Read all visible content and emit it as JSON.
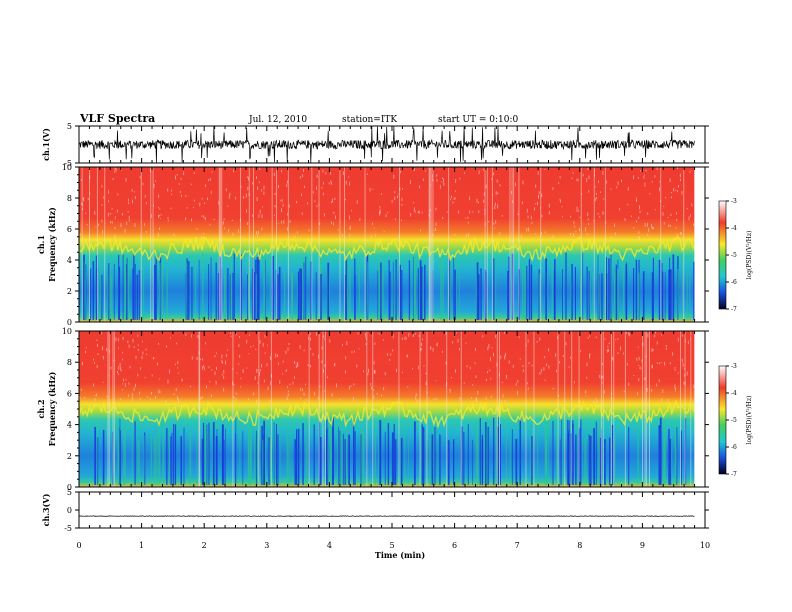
{
  "header": {
    "title": "VLF Spectra",
    "date": "Jul. 12, 2010",
    "station": "station=ITK",
    "start_time": "start UT =  0:10:0"
  },
  "chart_data": [
    {
      "type": "line",
      "name": "ch1-waveform",
      "ylabel": "ch.1(V)",
      "ylim": [
        -5,
        5
      ],
      "yticks": [
        "5",
        "-5"
      ],
      "xlim": [
        0,
        10
      ],
      "baseline": 0,
      "description_values": {
        "typical_amplitude": 1.2,
        "spike_amplitude": 5
      }
    },
    {
      "type": "heatmap",
      "name": "ch1-spectrogram",
      "ylabel": "ch.1 Frequency (kHz)",
      "ylim": [
        0,
        10
      ],
      "yticks": [
        "0",
        "2",
        "4",
        "6",
        "8",
        "10"
      ],
      "xlim": [
        0,
        10
      ],
      "colorbar": {
        "label": "log(PSD)(V²/Hz)",
        "range": [
          -7,
          -3
        ],
        "ticks": [
          "-3",
          "-4",
          "-5",
          "-6",
          "-7"
        ]
      }
    },
    {
      "type": "heatmap",
      "name": "ch2-spectrogram",
      "ylabel": "ch.2 Frequency (kHz)",
      "ylim": [
        0,
        10
      ],
      "yticks": [
        "0",
        "2",
        "4",
        "6",
        "8",
        "10"
      ],
      "xlim": [
        0,
        10
      ],
      "colorbar": {
        "label": "log(PSD)(V²/Hz)",
        "range": [
          -7,
          -3
        ],
        "ticks": [
          "-3",
          "-4",
          "-5",
          "-6",
          "-7"
        ]
      }
    },
    {
      "type": "line",
      "name": "ch3-waveform",
      "ylabel": "ch.3(V)",
      "ylim": [
        -5,
        5
      ],
      "yticks": [
        "5",
        "0",
        "-5"
      ],
      "xlim": [
        0,
        10
      ],
      "baseline": -1.7
    }
  ],
  "xaxis": {
    "label": "Time (min)",
    "ticks": [
      "0",
      "1",
      "2",
      "3",
      "4",
      "5",
      "6",
      "7",
      "8",
      "9",
      "10"
    ],
    "data_end": 9.83
  },
  "colors": {
    "high": "#f03c2c",
    "mid": "#f8e82c",
    "low": "#28c8a8",
    "floor": "#1838d8",
    "trace": "#000000"
  }
}
